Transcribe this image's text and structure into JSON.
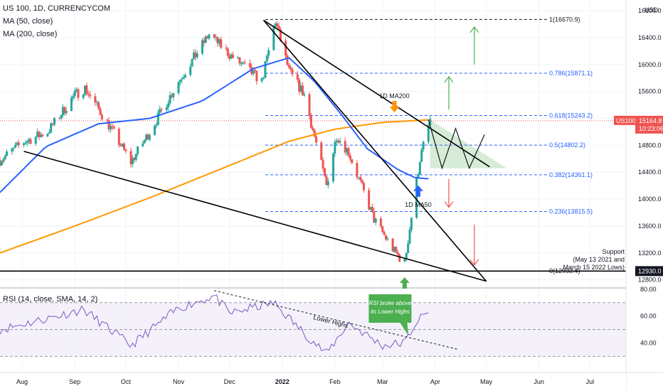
{
  "header": {
    "symbol_line": "US 100, 1D, CURRENCYCOM",
    "ma50_label": "MA (50, close)",
    "ma200_label": "MA (200, close)",
    "rsi_label": "RSI (14, close, SMA, 14, 2)",
    "currency": "USD"
  },
  "price_badge": {
    "symbol": "US100",
    "price": "15164.8",
    "countdown": "10:23:06"
  },
  "support_badge": "12930.0",
  "colors": {
    "up": "#26a69a",
    "down": "#ef5350",
    "ma50": "#2962ff",
    "ma200": "#ff9800",
    "rsi": "#7e57c2",
    "rsi_band": "#ede7f6",
    "fib": "#2962ff",
    "trend": "#000000",
    "triangle": "#c8e6c9",
    "arrow_up": "#4caf50",
    "arrow_down": "#ef5350",
    "bubble": "#4caf50"
  },
  "annotations": {
    "ma200_label": "1D MA200",
    "ma50_label": "1D MA50",
    "support": [
      "Support",
      "(May 13 2021 and",
      "March 15 2022 Lows)"
    ],
    "lower_highs": "Lower Highs",
    "rsi_bubble": [
      "RSI broke above",
      "its Lower Highs"
    ]
  },
  "chart_data": [
    {
      "type": "candlestick",
      "title": "US 100, 1D, CURRENCYCOM",
      "x_ticks": [
        "Aug",
        "Sep",
        "Oct",
        "Nov",
        "Dec",
        "2022",
        "Feb",
        "Mar",
        "Apr",
        "May",
        "Jun",
        "Jul"
      ],
      "y_ticks": [
        16800.0,
        16400.0,
        16000.0,
        15600.0,
        15200.0,
        14800.0,
        14400.0,
        14000.0,
        13600.0,
        13200.0,
        12800.0
      ],
      "ylim": [
        12680,
        16960
      ],
      "close_path": {
        "x": [
          "2021-07-19",
          "2021-08-02",
          "2021-08-16",
          "2021-09-01",
          "2021-09-07",
          "2021-09-21",
          "2021-10-04",
          "2021-10-15",
          "2021-11-01",
          "2021-11-19",
          "2021-12-01",
          "2021-12-20",
          "2021-12-28",
          "2022-01-05",
          "2022-01-14",
          "2022-01-27",
          "2022-02-02",
          "2022-02-09",
          "2022-02-24",
          "2022-03-08",
          "2022-03-14",
          "2022-03-23",
          "2022-03-29"
        ],
        "y": [
          14580,
          14850,
          15000,
          15550,
          15650,
          15100,
          14550,
          15000,
          15750,
          16450,
          16150,
          15750,
          16650,
          15900,
          15550,
          14200,
          14950,
          14700,
          13700,
          13220,
          13050,
          14600,
          15180
        ]
      },
      "series": [
        {
          "name": "MA (50, close)",
          "x": [
            "2021-07-19",
            "2021-08-15",
            "2021-09-15",
            "2021-10-15",
            "2021-11-15",
            "2021-12-15",
            "2022-01-05",
            "2022-01-20",
            "2022-02-05",
            "2022-02-20",
            "2022-03-10",
            "2022-03-20",
            "2022-03-29"
          ],
          "y": [
            14100,
            14780,
            15120,
            15200,
            15460,
            15940,
            16100,
            15750,
            15250,
            14750,
            14440,
            14320,
            14300
          ]
        },
        {
          "name": "MA (200, close)",
          "x": [
            "2021-07-19",
            "2021-09-01",
            "2021-10-15",
            "2021-12-01",
            "2022-01-05",
            "2022-02-01",
            "2022-03-01",
            "2022-03-29"
          ],
          "y": [
            13200,
            13600,
            14020,
            14500,
            14860,
            15040,
            15140,
            15180
          ]
        },
        {
          "name": "RSI (14, close, SMA, 14, 2)",
          "x": [
            "2021-07-19",
            "2021-08-15",
            "2021-09-06",
            "2021-10-04",
            "2021-11-01",
            "2021-11-22",
            "2021-12-01",
            "2021-12-27",
            "2022-01-10",
            "2022-01-27",
            "2022-02-09",
            "2022-03-01",
            "2022-03-14",
            "2022-03-21",
            "2022-03-29"
          ],
          "y": [
            50,
            58,
            65,
            38,
            66,
            75,
            62,
            70,
            52,
            32,
            55,
            38,
            40,
            56,
            64
          ]
        }
      ],
      "fibonacci": [
        {
          "ratio": "1",
          "value": 16670.9
        },
        {
          "ratio": "0.786",
          "value": 15871.1
        },
        {
          "ratio": "0.618",
          "value": 15243.2
        },
        {
          "ratio": "0.5",
          "value": 14802.2
        },
        {
          "ratio": "0.382",
          "value": 14361.1
        },
        {
          "ratio": "0.236",
          "value": 13815.5
        },
        {
          "ratio": "0",
          "value": 12933.4
        }
      ],
      "fib_labels": [
        "1(16670.9)",
        "0.786(15871.1)",
        "0.618(15243.2)",
        "0.5(14802.2)",
        "0.382(14361.1)",
        "0.236(13815.5)",
        "0(12933.4)"
      ],
      "support_level": 12930.0,
      "last_price": 15164.8,
      "trendlines": [
        {
          "from": [
            "2021-12-21",
            16660
          ],
          "to": [
            "2022-05-01",
            12780
          ]
        },
        {
          "from": [
            "2021-12-21",
            16660
          ],
          "to": [
            "2022-05-03",
            14480
          ]
        },
        {
          "from": [
            "2021-08-02",
            14710
          ],
          "to": [
            "2022-05-01",
            12780
          ]
        }
      ]
    },
    {
      "type": "line",
      "title": "RSI (14, close, SMA, 14, 2)",
      "y_ticks": [
        80.0,
        60.0,
        40.0
      ],
      "ylim": [
        19,
        81
      ],
      "bands": [
        70,
        50,
        30
      ],
      "lower_highs_line": {
        "from": [
          "2021-11-22",
          79
        ],
        "to": [
          "2022-04-15",
          35
        ]
      }
    }
  ]
}
